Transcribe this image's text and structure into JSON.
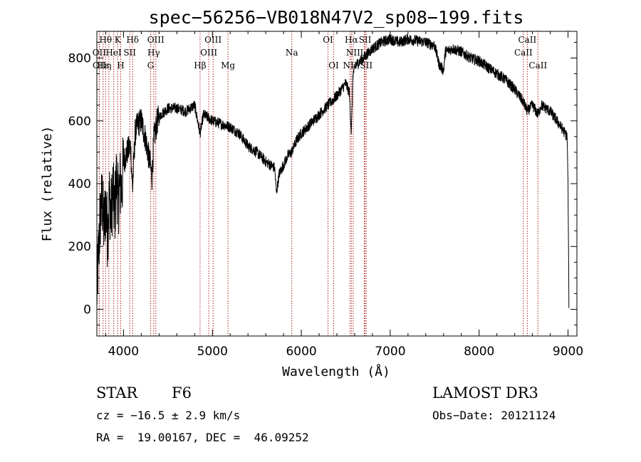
{
  "chart_data": {
    "type": "line",
    "title": "spec−56256−VB018N47V2_sp08−199.fits",
    "xlabel": "Wavelength (Å)",
    "ylabel": "Flux (relative)",
    "xlim": [
      3700,
      9100
    ],
    "ylim": [
      -85,
      885
    ],
    "xticks": [
      4000,
      5000,
      6000,
      7000,
      8000,
      9000
    ],
    "yticks": [
      0,
      200,
      400,
      600,
      800
    ],
    "xtick_labels": [
      "4000",
      "5000",
      "6000",
      "7000",
      "8000",
      "9000"
    ],
    "ytick_labels": [
      "0",
      "200",
      "400",
      "600",
      "800"
    ],
    "series": [
      {
        "name": "flux",
        "x": [
          3700,
          3720,
          3740,
          3760,
          3780,
          3800,
          3820,
          3840,
          3860,
          3880,
          3900,
          3920,
          3940,
          3960,
          3980,
          4000,
          4040,
          4080,
          4101,
          4130,
          4160,
          4200,
          4250,
          4300,
          4320,
          4340,
          4380,
          4420,
          4500,
          4600,
          4700,
          4800,
          4861,
          4900,
          5000,
          5100,
          5200,
          5300,
          5400,
          5500,
          5600,
          5700,
          5720,
          5750,
          5800,
          5850,
          5890,
          5950,
          6000,
          6100,
          6200,
          6300,
          6400,
          6500,
          6540,
          6563,
          6580,
          6620,
          6700,
          6800,
          6900,
          7000,
          7100,
          7200,
          7300,
          7400,
          7500,
          7550,
          7600,
          7620,
          7700,
          7800,
          7900,
          8000,
          8100,
          8200,
          8300,
          8400,
          8498,
          8542,
          8600,
          8662,
          8700,
          8800,
          8900,
          8990,
          9000,
          9010
        ],
        "y": [
          50,
          180,
          300,
          350,
          260,
          330,
          240,
          360,
          300,
          380,
          300,
          420,
          340,
          400,
          380,
          470,
          500,
          520,
          380,
          560,
          590,
          600,
          540,
          460,
          420,
          540,
          600,
          620,
          640,
          640,
          630,
          650,
          560,
          620,
          600,
          590,
          580,
          560,
          520,
          500,
          470,
          450,
          370,
          430,
          460,
          490,
          500,
          540,
          560,
          590,
          620,
          650,
          680,
          720,
          690,
          560,
          750,
          780,
          800,
          830,
          850,
          860,
          850,
          860,
          855,
          850,
          840,
          780,
          760,
          820,
          830,
          820,
          800,
          790,
          770,
          750,
          730,
          700,
          660,
          630,
          650,
          620,
          650,
          630,
          590,
          550,
          400,
          20
        ]
      }
    ],
    "lines_top": [
      {
        "label": "Hθ",
        "x": 3798,
        "row": 0
      },
      {
        "label": "K",
        "x": 3934,
        "row": 0
      },
      {
        "label": "Hδ",
        "x": 4102,
        "row": 0
      },
      {
        "label": "OIII",
        "x": 4363,
        "row": 0
      },
      {
        "label": "OIII",
        "x": 5007,
        "row": 0
      },
      {
        "label": "OI",
        "x": 6300,
        "row": 0
      },
      {
        "label": "Hα",
        "x": 6563,
        "row": 0
      },
      {
        "label": "SII",
        "x": 6717,
        "row": 0
      },
      {
        "label": "CaII",
        "x": 8542,
        "row": 0
      },
      {
        "label": "OII",
        "x": 3727,
        "row": 1
      },
      {
        "label": "HeI",
        "x": 3889,
        "row": 1
      },
      {
        "label": "SII",
        "x": 4070,
        "row": 1
      },
      {
        "label": "Hγ",
        "x": 4340,
        "row": 1
      },
      {
        "label": "OIII",
        "x": 4959,
        "row": 1
      },
      {
        "label": "Na",
        "x": 5893,
        "row": 1
      },
      {
        "label": "NII",
        "x": 6583,
        "row": 1
      },
      {
        "label": "Li",
        "x": 6708,
        "row": 1
      },
      {
        "label": "CaII",
        "x": 8498,
        "row": 1
      },
      {
        "label": "OII",
        "x": 3729,
        "row": 2
      },
      {
        "label": "Hε",
        "x": 3770,
        "row": 2
      },
      {
        "label": "η",
        "x": 3835,
        "row": 2
      },
      {
        "label": "H",
        "x": 3968,
        "row": 2
      },
      {
        "label": "G",
        "x": 4305,
        "row": 2
      },
      {
        "label": "Hβ",
        "x": 4861,
        "row": 2
      },
      {
        "label": "Mg",
        "x": 5175,
        "row": 2
      },
      {
        "label": "OI",
        "x": 6364,
        "row": 2
      },
      {
        "label": "NII",
        "x": 6548,
        "row": 2
      },
      {
        "label": "SII",
        "x": 6731,
        "row": 2
      },
      {
        "label": "CaII",
        "x": 8662,
        "row": 2
      }
    ],
    "line_markers": [
      3727,
      3729,
      3770,
      3798,
      3835,
      3889,
      3934,
      3968,
      4070,
      4102,
      4305,
      4340,
      4363,
      4861,
      4959,
      5007,
      5175,
      5893,
      6300,
      6364,
      6548,
      6563,
      6583,
      6708,
      6717,
      6731,
      8498,
      8542,
      8662
    ],
    "colors": {
      "spectrum": "#000000",
      "markers": "#b22222",
      "axes": "#000000"
    }
  },
  "info": {
    "object_type": "STAR",
    "subclass": "F6",
    "survey": "LAMOST DR3",
    "cz": "cz = −16.5 ± 2.9 km/s",
    "obs_date": "Obs−Date: 20121124",
    "coords": "RA =  19.00167, DEC =  46.09252"
  }
}
